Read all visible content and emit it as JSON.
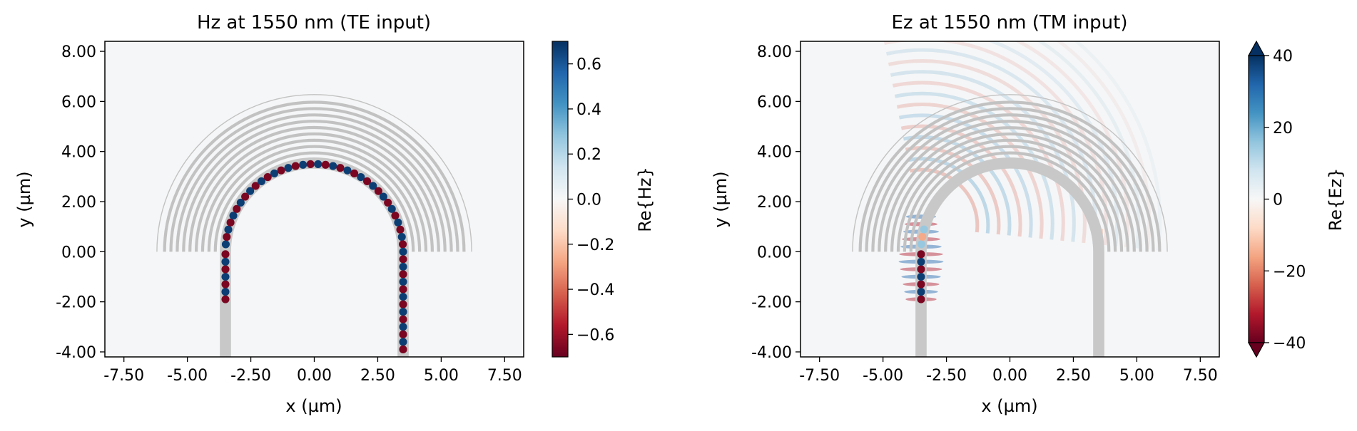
{
  "chart_data": [
    {
      "type": "heatmap",
      "title": "Hz at 1550 nm (TE input)",
      "xlabel": "x (µm)",
      "ylabel": "y (µm)",
      "xlim": [
        -8.25,
        8.25
      ],
      "ylim": [
        -4.2,
        8.4
      ],
      "x_ticks": [
        -7.5,
        -5.0,
        -2.5,
        0.0,
        2.5,
        5.0,
        7.5
      ],
      "x_tick_labels": [
        "-7.50",
        "-5.00",
        "-2.50",
        "0.00",
        "2.50",
        "5.00",
        "7.50"
      ],
      "y_ticks": [
        -4,
        -2,
        0,
        2,
        4,
        6,
        8
      ],
      "y_tick_labels": [
        "-4.00",
        "-2.00",
        "0.00",
        "2.00",
        "4.00",
        "6.00",
        "8.00"
      ],
      "colorbar": {
        "label": "Re{Hz}",
        "range": [
          -0.7,
          0.7
        ],
        "ticks": [
          -0.6,
          -0.4,
          -0.2,
          0.0,
          0.2,
          0.4,
          0.6
        ],
        "tick_labels": [
          "−0.6",
          "−0.4",
          "−0.2",
          "0.0",
          "0.2",
          "0.4",
          "0.6"
        ],
        "extend": false,
        "colormap": "RdBu"
      },
      "structure": {
        "waveguide_x": [
          -3.5,
          3.5
        ],
        "waveguide_y_bottom": -4.2,
        "bend_radius": 3.5,
        "waveguide_width": 0.4,
        "grating_ring_radii": [
          3.9,
          4.15,
          4.4,
          4.65,
          4.9,
          5.15,
          5.4,
          5.65,
          5.9,
          6.2
        ]
      },
      "field": {
        "path": "full",
        "mode_period": 0.6,
        "amplitude": 0.7,
        "radiation": 0.0
      }
    },
    {
      "type": "heatmap",
      "title": "Ez at 1550 nm (TM input)",
      "xlabel": "x (µm)",
      "ylabel": "y (µm)",
      "xlim": [
        -8.25,
        8.25
      ],
      "ylim": [
        -4.2,
        8.4
      ],
      "x_ticks": [
        -7.5,
        -5.0,
        -2.5,
        0.0,
        2.5,
        5.0,
        7.5
      ],
      "x_tick_labels": [
        "-7.50",
        "-5.00",
        "-2.50",
        "0.00",
        "2.50",
        "5.00",
        "7.50"
      ],
      "y_ticks": [
        -4,
        -2,
        0,
        2,
        4,
        6,
        8
      ],
      "y_tick_labels": [
        "-4.00",
        "-2.00",
        "0.00",
        "2.00",
        "4.00",
        "6.00",
        "8.00"
      ],
      "colorbar": {
        "label": "Re{Ez}",
        "range": [
          -40,
          40
        ],
        "ticks": [
          -40,
          -20,
          0,
          20,
          40
        ],
        "tick_labels": [
          "−40",
          "−20",
          "0",
          "20",
          "40"
        ],
        "extend": true,
        "colormap": "RdBu"
      },
      "structure": {
        "waveguide_x": [
          -3.5,
          3.5
        ],
        "waveguide_y_bottom": -4.2,
        "bend_radius": 3.5,
        "waveguide_width": 0.4,
        "grating_ring_radii": [
          3.9,
          4.15,
          4.4,
          4.65,
          4.9,
          5.15,
          5.4,
          5.65,
          5.9,
          6.2
        ]
      },
      "field": {
        "path": "left-arm",
        "mode_period": 0.6,
        "amplitude": 40,
        "radiation": 1.0
      }
    }
  ]
}
